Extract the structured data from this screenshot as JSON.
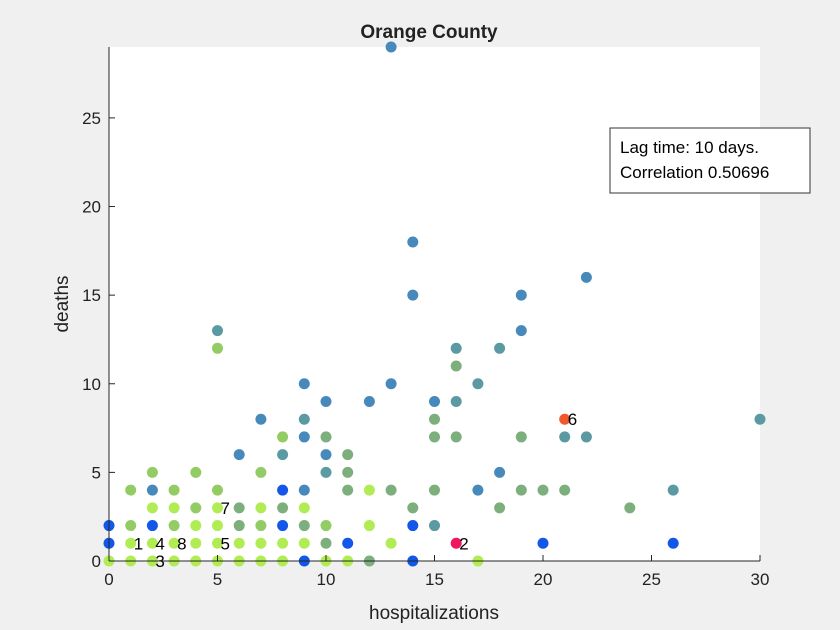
{
  "chart_data": {
    "type": "scatter",
    "title": "Orange County",
    "xlabel": "hospitalizations",
    "ylabel": "deaths",
    "xlim": [
      0,
      30
    ],
    "ylim": [
      0,
      29
    ],
    "xticks": [
      0,
      5,
      10,
      15,
      20,
      25,
      30
    ],
    "yticks": [
      0,
      5,
      10,
      15,
      20,
      25
    ],
    "grid": false,
    "legend_text": [
      "Lag time: 10 days.",
      "Correlation 0.50696"
    ],
    "legend_position": "top-right",
    "colors": {
      "light_green": "#b2ec55",
      "green": "#93cc65",
      "sage": "#7daf7d",
      "teal": "#5b9aa2",
      "steel_blue": "#4889bb",
      "blue": "#1257e8",
      "orange": "#f2582b",
      "pink": "#f0165e"
    },
    "points": [
      {
        "x": 0,
        "y": 0,
        "c": "light_green"
      },
      {
        "x": 1,
        "y": 0,
        "c": "light_green"
      },
      {
        "x": 2,
        "y": 0,
        "c": "light_green"
      },
      {
        "x": 3,
        "y": 0,
        "c": "light_green"
      },
      {
        "x": 4,
        "y": 0,
        "c": "light_green"
      },
      {
        "x": 5,
        "y": 0,
        "c": "light_green"
      },
      {
        "x": 6,
        "y": 0,
        "c": "light_green"
      },
      {
        "x": 7,
        "y": 0,
        "c": "light_green"
      },
      {
        "x": 8,
        "y": 0,
        "c": "light_green"
      },
      {
        "x": 9,
        "y": 0,
        "c": "blue"
      },
      {
        "x": 10,
        "y": 0,
        "c": "light_green"
      },
      {
        "x": 11,
        "y": 0,
        "c": "light_green"
      },
      {
        "x": 12,
        "y": 0,
        "c": "sage"
      },
      {
        "x": 14,
        "y": 0,
        "c": "blue"
      },
      {
        "x": 17,
        "y": 0,
        "c": "light_green"
      },
      {
        "x": 0,
        "y": 1,
        "c": "blue"
      },
      {
        "x": 1,
        "y": 1,
        "c": "light_green"
      },
      {
        "x": 2,
        "y": 1,
        "c": "light_green"
      },
      {
        "x": 3,
        "y": 1,
        "c": "light_green"
      },
      {
        "x": 4,
        "y": 1,
        "c": "light_green"
      },
      {
        "x": 5,
        "y": 1,
        "c": "light_green"
      },
      {
        "x": 6,
        "y": 1,
        "c": "light_green"
      },
      {
        "x": 7,
        "y": 1,
        "c": "light_green"
      },
      {
        "x": 8,
        "y": 1,
        "c": "light_green"
      },
      {
        "x": 9,
        "y": 1,
        "c": "light_green"
      },
      {
        "x": 10,
        "y": 1,
        "c": "sage"
      },
      {
        "x": 11,
        "y": 1,
        "c": "blue"
      },
      {
        "x": 13,
        "y": 1,
        "c": "light_green"
      },
      {
        "x": 16,
        "y": 1,
        "c": "pink"
      },
      {
        "x": 20,
        "y": 1,
        "c": "blue"
      },
      {
        "x": 26,
        "y": 1,
        "c": "blue"
      },
      {
        "x": 0,
        "y": 2,
        "c": "blue"
      },
      {
        "x": 1,
        "y": 2,
        "c": "green"
      },
      {
        "x": 2,
        "y": 2,
        "c": "blue"
      },
      {
        "x": 3,
        "y": 2,
        "c": "green"
      },
      {
        "x": 4,
        "y": 2,
        "c": "light_green"
      },
      {
        "x": 5,
        "y": 2,
        "c": "light_green"
      },
      {
        "x": 6,
        "y": 2,
        "c": "sage"
      },
      {
        "x": 7,
        "y": 2,
        "c": "green"
      },
      {
        "x": 8,
        "y": 2,
        "c": "blue"
      },
      {
        "x": 9,
        "y": 2,
        "c": "sage"
      },
      {
        "x": 10,
        "y": 2,
        "c": "green"
      },
      {
        "x": 12,
        "y": 2,
        "c": "light_green"
      },
      {
        "x": 14,
        "y": 2,
        "c": "blue"
      },
      {
        "x": 15,
        "y": 2,
        "c": "teal"
      },
      {
        "x": 2,
        "y": 3,
        "c": "light_green"
      },
      {
        "x": 3,
        "y": 3,
        "c": "light_green"
      },
      {
        "x": 4,
        "y": 3,
        "c": "green"
      },
      {
        "x": 5,
        "y": 3,
        "c": "light_green"
      },
      {
        "x": 6,
        "y": 3,
        "c": "sage"
      },
      {
        "x": 7,
        "y": 3,
        "c": "light_green"
      },
      {
        "x": 8,
        "y": 3,
        "c": "sage"
      },
      {
        "x": 9,
        "y": 3,
        "c": "light_green"
      },
      {
        "x": 14,
        "y": 3,
        "c": "sage"
      },
      {
        "x": 18,
        "y": 3,
        "c": "sage"
      },
      {
        "x": 24,
        "y": 3,
        "c": "sage"
      },
      {
        "x": 1,
        "y": 4,
        "c": "green"
      },
      {
        "x": 2,
        "y": 4,
        "c": "steel_blue"
      },
      {
        "x": 3,
        "y": 4,
        "c": "green"
      },
      {
        "x": 5,
        "y": 4,
        "c": "green"
      },
      {
        "x": 8,
        "y": 4,
        "c": "blue"
      },
      {
        "x": 9,
        "y": 4,
        "c": "steel_blue"
      },
      {
        "x": 11,
        "y": 4,
        "c": "sage"
      },
      {
        "x": 12,
        "y": 4,
        "c": "light_green"
      },
      {
        "x": 13,
        "y": 4,
        "c": "sage"
      },
      {
        "x": 15,
        "y": 4,
        "c": "sage"
      },
      {
        "x": 17,
        "y": 4,
        "c": "steel_blue"
      },
      {
        "x": 19,
        "y": 4,
        "c": "sage"
      },
      {
        "x": 20,
        "y": 4,
        "c": "sage"
      },
      {
        "x": 21,
        "y": 4,
        "c": "sage"
      },
      {
        "x": 26,
        "y": 4,
        "c": "teal"
      },
      {
        "x": 2,
        "y": 5,
        "c": "green"
      },
      {
        "x": 4,
        "y": 5,
        "c": "green"
      },
      {
        "x": 7,
        "y": 5,
        "c": "green"
      },
      {
        "x": 10,
        "y": 5,
        "c": "teal"
      },
      {
        "x": 11,
        "y": 5,
        "c": "sage"
      },
      {
        "x": 18,
        "y": 5,
        "c": "steel_blue"
      },
      {
        "x": 6,
        "y": 6,
        "c": "steel_blue"
      },
      {
        "x": 8,
        "y": 6,
        "c": "teal"
      },
      {
        "x": 10,
        "y": 6,
        "c": "steel_blue"
      },
      {
        "x": 11,
        "y": 6,
        "c": "sage"
      },
      {
        "x": 8,
        "y": 7,
        "c": "green"
      },
      {
        "x": 9,
        "y": 7,
        "c": "steel_blue"
      },
      {
        "x": 10,
        "y": 7,
        "c": "sage"
      },
      {
        "x": 15,
        "y": 7,
        "c": "sage"
      },
      {
        "x": 16,
        "y": 7,
        "c": "sage"
      },
      {
        "x": 19,
        "y": 7,
        "c": "sage"
      },
      {
        "x": 21,
        "y": 7,
        "c": "teal"
      },
      {
        "x": 22,
        "y": 7,
        "c": "teal"
      },
      {
        "x": 7,
        "y": 8,
        "c": "steel_blue"
      },
      {
        "x": 9,
        "y": 8,
        "c": "teal"
      },
      {
        "x": 15,
        "y": 8,
        "c": "sage"
      },
      {
        "x": 21,
        "y": 8,
        "c": "orange"
      },
      {
        "x": 30,
        "y": 8,
        "c": "teal"
      },
      {
        "x": 10,
        "y": 9,
        "c": "steel_blue"
      },
      {
        "x": 12,
        "y": 9,
        "c": "steel_blue"
      },
      {
        "x": 15,
        "y": 9,
        "c": "steel_blue"
      },
      {
        "x": 16,
        "y": 9,
        "c": "teal"
      },
      {
        "x": 9,
        "y": 10,
        "c": "steel_blue"
      },
      {
        "x": 13,
        "y": 10,
        "c": "steel_blue"
      },
      {
        "x": 17,
        "y": 10,
        "c": "teal"
      },
      {
        "x": 16,
        "y": 11,
        "c": "sage"
      },
      {
        "x": 5,
        "y": 12,
        "c": "green"
      },
      {
        "x": 16,
        "y": 12,
        "c": "teal"
      },
      {
        "x": 18,
        "y": 12,
        "c": "teal"
      },
      {
        "x": 5,
        "y": 13,
        "c": "teal"
      },
      {
        "x": 19,
        "y": 13,
        "c": "steel_blue"
      },
      {
        "x": 14,
        "y": 15,
        "c": "steel_blue"
      },
      {
        "x": 19,
        "y": 15,
        "c": "steel_blue"
      },
      {
        "x": 22,
        "y": 16,
        "c": "steel_blue"
      },
      {
        "x": 14,
        "y": 18,
        "c": "steel_blue"
      },
      {
        "x": 13,
        "y": 29,
        "c": "steel_blue"
      }
    ],
    "annotations": [
      {
        "text": "1",
        "x": 1,
        "y": 1
      },
      {
        "text": "4",
        "x": 2,
        "y": 1
      },
      {
        "text": "3",
        "x": 2,
        "y": 0
      },
      {
        "text": "8",
        "x": 3,
        "y": 1
      },
      {
        "text": "7",
        "x": 5,
        "y": 3
      },
      {
        "text": "5",
        "x": 5,
        "y": 1
      },
      {
        "text": "2",
        "x": 16,
        "y": 1
      },
      {
        "text": "6",
        "x": 21,
        "y": 8
      }
    ]
  }
}
